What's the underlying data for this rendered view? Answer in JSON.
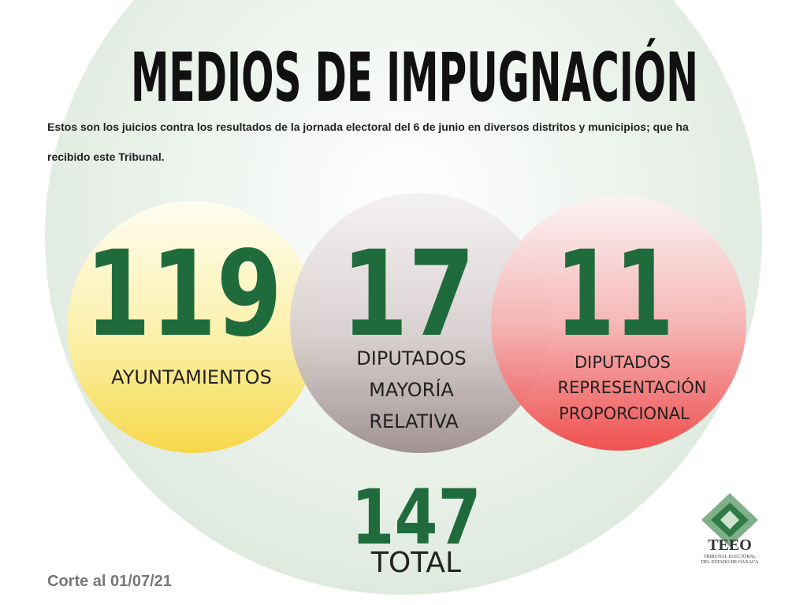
{
  "header": {
    "title": "MEDIOS DE IMPUGNACIÓN",
    "subtitle_lines": [
      "Estos son los juicios contra los resultados de la jornada electoral del 6 de junio en diversos distritos y municipios; que ha",
      "recibido este Tribunal."
    ]
  },
  "items": [
    {
      "number": 119,
      "label_lines": [
        "AYUNTAMIENTOS"
      ]
    },
    {
      "number": 17,
      "label_lines": [
        "DIPUTADOS",
        "MAYORÍA",
        "RELATIVA"
      ]
    },
    {
      "number": 11,
      "label_lines": [
        "DIPUTADOS",
        "REPRESENTACIÓN",
        "PROPORCIONAL"
      ]
    }
  ],
  "total": {
    "number": 147,
    "label": "TOTAL"
  },
  "footer": "Corte al 01/07/21",
  "logo": {
    "name": "TEEO",
    "lines": [
      "TRIBUNAL ELECTORAL",
      "DEL ESTADO DE OAXACA"
    ]
  }
}
